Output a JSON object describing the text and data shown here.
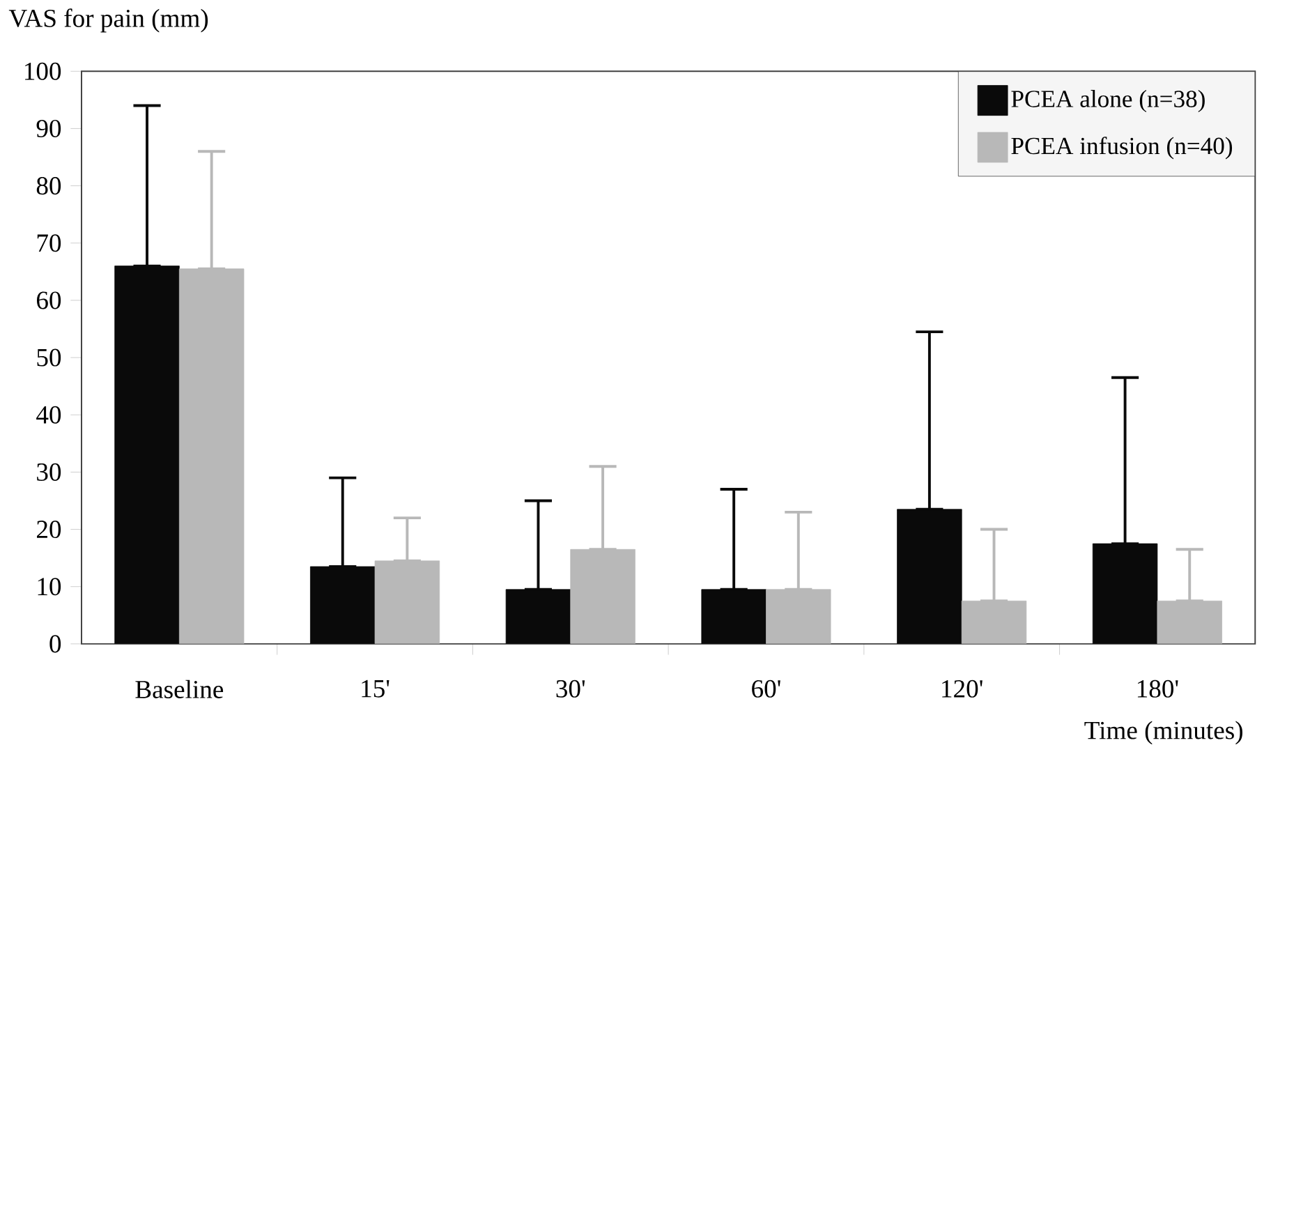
{
  "chart_data": {
    "type": "bar",
    "xlabel": "Time (minutes)",
    "ylabel": "VAS for pain (mm)",
    "categories": [
      "Baseline",
      "15'",
      "30'",
      "60'",
      "120'",
      "180'"
    ],
    "series": [
      {
        "name": "PCEA alone (n=38)",
        "color": "#0a0a0a",
        "values": [
          66,
          13.5,
          9.5,
          9.5,
          23.5,
          17.5
        ],
        "errors": [
          [
            66,
            94
          ],
          [
            13.5,
            29
          ],
          [
            9.5,
            25
          ],
          [
            9.5,
            27
          ],
          [
            23.5,
            54.5
          ],
          [
            17.5,
            46.5
          ]
        ]
      },
      {
        "name": "PCEA infusion (n=40)",
        "color": "#b8b8b8",
        "values": [
          65.5,
          14.5,
          16.5,
          9.5,
          7.5,
          7.5
        ],
        "errors": [
          [
            65.5,
            86
          ],
          [
            14.5,
            22
          ],
          [
            16.5,
            31
          ],
          [
            9.5,
            23
          ],
          [
            7.5,
            20
          ],
          [
            7.5,
            16.5
          ]
        ]
      }
    ],
    "ylim": [
      0,
      100
    ],
    "yticks": [
      0,
      10,
      20,
      30,
      40,
      50,
      60,
      70,
      80,
      90,
      100
    ],
    "legend": "top right",
    "grid": false
  }
}
